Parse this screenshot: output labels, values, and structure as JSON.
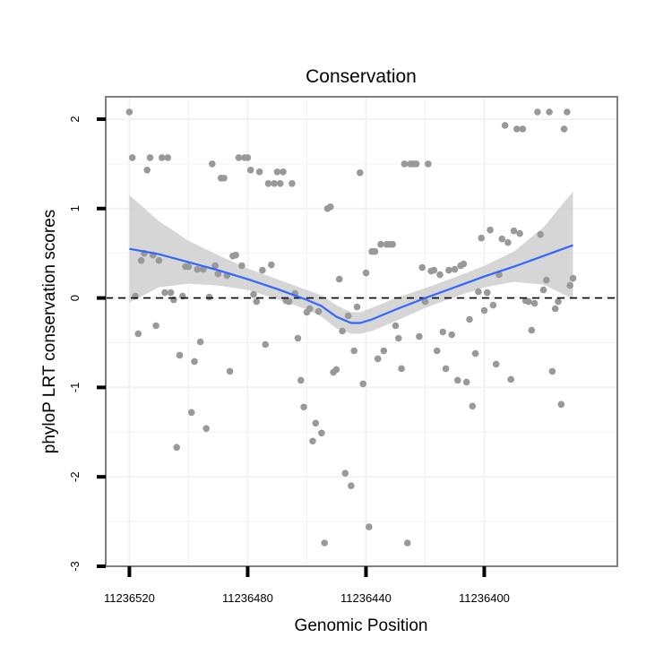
{
  "chart_data": {
    "type": "scatter",
    "title": "Conservation",
    "xlabel": "Genomic Position",
    "ylabel": "phyloP LRT conservation scores",
    "x_reversed": true,
    "xlim": [
      11236528,
      11236355
    ],
    "ylim": [
      -3,
      2.25
    ],
    "x_ticks": [
      11236520,
      11236480,
      11236440,
      11236400
    ],
    "x_tick_labels": [
      "11236520",
      "11236480",
      "11236440",
      "11236400"
    ],
    "y_ticks": [
      -3,
      -2,
      -1,
      0,
      1,
      2
    ],
    "y_tick_labels": [
      "-3",
      "-2",
      "-1",
      "0",
      "1",
      "2"
    ],
    "reference_line": {
      "y": 0,
      "style": "dashed",
      "color": "#000000"
    },
    "colors": {
      "points": "#999999",
      "smooth": "#3366ff",
      "ribbon": "#cccccc",
      "panel_border": "#808080",
      "grid": "#f2f2f2"
    },
    "points": [
      [
        11236520,
        2.08
      ],
      [
        11236519,
        1.57
      ],
      [
        11236518,
        0.02
      ],
      [
        11236517,
        -0.4
      ],
      [
        11236516,
        0.42
      ],
      [
        11236515,
        0.5
      ],
      [
        11236514,
        1.43
      ],
      [
        11236513,
        1.57
      ],
      [
        11236512,
        0.48
      ],
      [
        11236511,
        -0.31
      ],
      [
        11236510,
        0.42
      ],
      [
        11236509,
        1.57
      ],
      [
        11236508,
        0.06
      ],
      [
        11236507,
        1.57
      ],
      [
        11236506,
        0.06
      ],
      [
        11236505,
        -0.02
      ],
      [
        11236504,
        -1.67
      ],
      [
        11236503,
        -0.64
      ],
      [
        11236502,
        0.02
      ],
      [
        11236501,
        0.35
      ],
      [
        11236500,
        0.35
      ],
      [
        11236499,
        -1.28
      ],
      [
        11236498,
        -0.71
      ],
      [
        11236497,
        0.32
      ],
      [
        11236496,
        -0.49
      ],
      [
        11236495,
        0.32
      ],
      [
        11236494,
        -1.46
      ],
      [
        11236493,
        0.01
      ],
      [
        11236492,
        1.5
      ],
      [
        11236491,
        0.36
      ],
      [
        11236490,
        0.27
      ],
      [
        11236489,
        1.34
      ],
      [
        11236488,
        1.34
      ],
      [
        11236487,
        0.25
      ],
      [
        11236486,
        -0.82
      ],
      [
        11236485,
        0.47
      ],
      [
        11236484,
        0.48
      ],
      [
        11236483,
        1.57
      ],
      [
        11236482,
        0.36
      ],
      [
        11236481,
        1.57
      ],
      [
        11236480,
        1.57
      ],
      [
        11236479,
        1.43
      ],
      [
        11236478,
        0.04
      ],
      [
        11236477,
        -0.04
      ],
      [
        11236476,
        1.41
      ],
      [
        11236475,
        0.31
      ],
      [
        11236474,
        -0.52
      ],
      [
        11236473,
        1.28
      ],
      [
        11236472,
        0.37
      ],
      [
        11236471,
        1.28
      ],
      [
        11236470,
        1.41
      ],
      [
        11236469,
        1.28
      ],
      [
        11236468,
        1.41
      ],
      [
        11236467,
        -0.03
      ],
      [
        11236466,
        -0.04
      ],
      [
        11236465,
        1.28
      ],
      [
        11236464,
        0.05
      ],
      [
        11236463,
        -0.45
      ],
      [
        11236462,
        -0.92
      ],
      [
        11236461,
        -1.22
      ],
      [
        11236460,
        -0.16
      ],
      [
        11236459,
        -0.12
      ],
      [
        11236458,
        -1.6
      ],
      [
        11236457,
        -1.4
      ],
      [
        11236456,
        -0.15
      ],
      [
        11236455,
        -1.51
      ],
      [
        11236454,
        -2.74
      ],
      [
        11236453,
        1.0
      ],
      [
        11236452,
        1.02
      ],
      [
        11236451,
        -0.83
      ],
      [
        11236450,
        -0.8
      ],
      [
        11236449,
        0.21
      ],
      [
        11236448,
        -0.37
      ],
      [
        11236447,
        -1.96
      ],
      [
        11236446,
        -0.2
      ],
      [
        11236445,
        -2.1
      ],
      [
        11236444,
        -0.59
      ],
      [
        11236443,
        -0.1
      ],
      [
        11236442,
        1.4
      ],
      [
        11236441,
        -0.96
      ],
      [
        11236440,
        0.28
      ],
      [
        11236439,
        -2.56
      ],
      [
        11236438,
        0.52
      ],
      [
        11236437,
        0.52
      ],
      [
        11236436,
        -0.68
      ],
      [
        11236435,
        0.6
      ],
      [
        11236434,
        -0.59
      ],
      [
        11236433,
        0.6
      ],
      [
        11236432,
        0.6
      ],
      [
        11236431,
        0.6
      ],
      [
        11236430,
        -0.31
      ],
      [
        11236429,
        -0.45
      ],
      [
        11236428,
        -0.79
      ],
      [
        11236427,
        1.5
      ],
      [
        11236426,
        -2.74
      ],
      [
        11236425,
        1.5
      ],
      [
        11236424,
        1.5
      ],
      [
        11236423,
        1.5
      ],
      [
        11236422,
        -0.43
      ],
      [
        11236421,
        0.34
      ],
      [
        11236420,
        -0.04
      ],
      [
        11236419,
        1.5
      ],
      [
        11236418,
        0.3
      ],
      [
        11236417,
        0.31
      ],
      [
        11236416,
        -0.59
      ],
      [
        11236415,
        0.26
      ],
      [
        11236414,
        -0.38
      ],
      [
        11236413,
        -0.79
      ],
      [
        11236412,
        0.31
      ],
      [
        11236411,
        -0.41
      ],
      [
        11236410,
        0.32
      ],
      [
        11236409,
        -0.92
      ],
      [
        11236408,
        0.36
      ],
      [
        11236407,
        0.38
      ],
      [
        11236406,
        -0.94
      ],
      [
        11236405,
        -0.24
      ],
      [
        11236404,
        -1.21
      ],
      [
        11236403,
        -0.62
      ],
      [
        11236402,
        0.07
      ],
      [
        11236401,
        0.67
      ],
      [
        11236400,
        -0.14
      ],
      [
        11236399,
        0.06
      ],
      [
        11236398,
        0.76
      ],
      [
        11236397,
        -0.08
      ],
      [
        11236396,
        -0.74
      ],
      [
        11236395,
        0.26
      ],
      [
        11236394,
        0.66
      ],
      [
        11236393,
        1.93
      ],
      [
        11236392,
        0.62
      ],
      [
        11236391,
        -0.91
      ],
      [
        11236390,
        0.75
      ],
      [
        11236389,
        1.89
      ],
      [
        11236388,
        0.72
      ],
      [
        11236387,
        1.89
      ],
      [
        11236386,
        -0.03
      ],
      [
        11236385,
        -0.04
      ],
      [
        11236384,
        -0.36
      ],
      [
        11236383,
        -0.06
      ],
      [
        11236382,
        2.08
      ],
      [
        11236381,
        0.71
      ],
      [
        11236380,
        0.09
      ],
      [
        11236379,
        0.2
      ],
      [
        11236378,
        2.08
      ],
      [
        11236377,
        -0.82
      ],
      [
        11236376,
        -0.12
      ],
      [
        11236375,
        -0.04
      ],
      [
        11236374,
        -1.19
      ],
      [
        11236373,
        1.89
      ],
      [
        11236372,
        2.08
      ],
      [
        11236371,
        0.14
      ],
      [
        11236370,
        0.22
      ]
    ],
    "smooth": {
      "x": [
        11236520,
        11236510,
        11236500,
        11236490,
        11236480,
        11236470,
        11236460,
        11236455,
        11236450,
        11236445,
        11236442,
        11236438,
        11236430,
        11236420,
        11236410,
        11236400,
        11236390,
        11236380,
        11236370
      ],
      "y": [
        0.55,
        0.49,
        0.4,
        0.31,
        0.21,
        0.1,
        -0.02,
        -0.09,
        -0.21,
        -0.28,
        -0.28,
        -0.24,
        -0.13,
        0.0,
        0.12,
        0.24,
        0.35,
        0.47,
        0.59
      ],
      "upper": [
        1.15,
        0.86,
        0.64,
        0.48,
        0.33,
        0.21,
        0.09,
        0.03,
        -0.08,
        -0.16,
        -0.16,
        -0.11,
        0.0,
        0.11,
        0.23,
        0.36,
        0.52,
        0.79,
        1.19
      ],
      "lower": [
        -0.05,
        0.12,
        0.16,
        0.14,
        0.09,
        -0.01,
        -0.13,
        -0.21,
        -0.34,
        -0.4,
        -0.4,
        -0.37,
        -0.26,
        -0.11,
        0.01,
        0.12,
        0.18,
        0.15,
        -0.01
      ]
    }
  }
}
